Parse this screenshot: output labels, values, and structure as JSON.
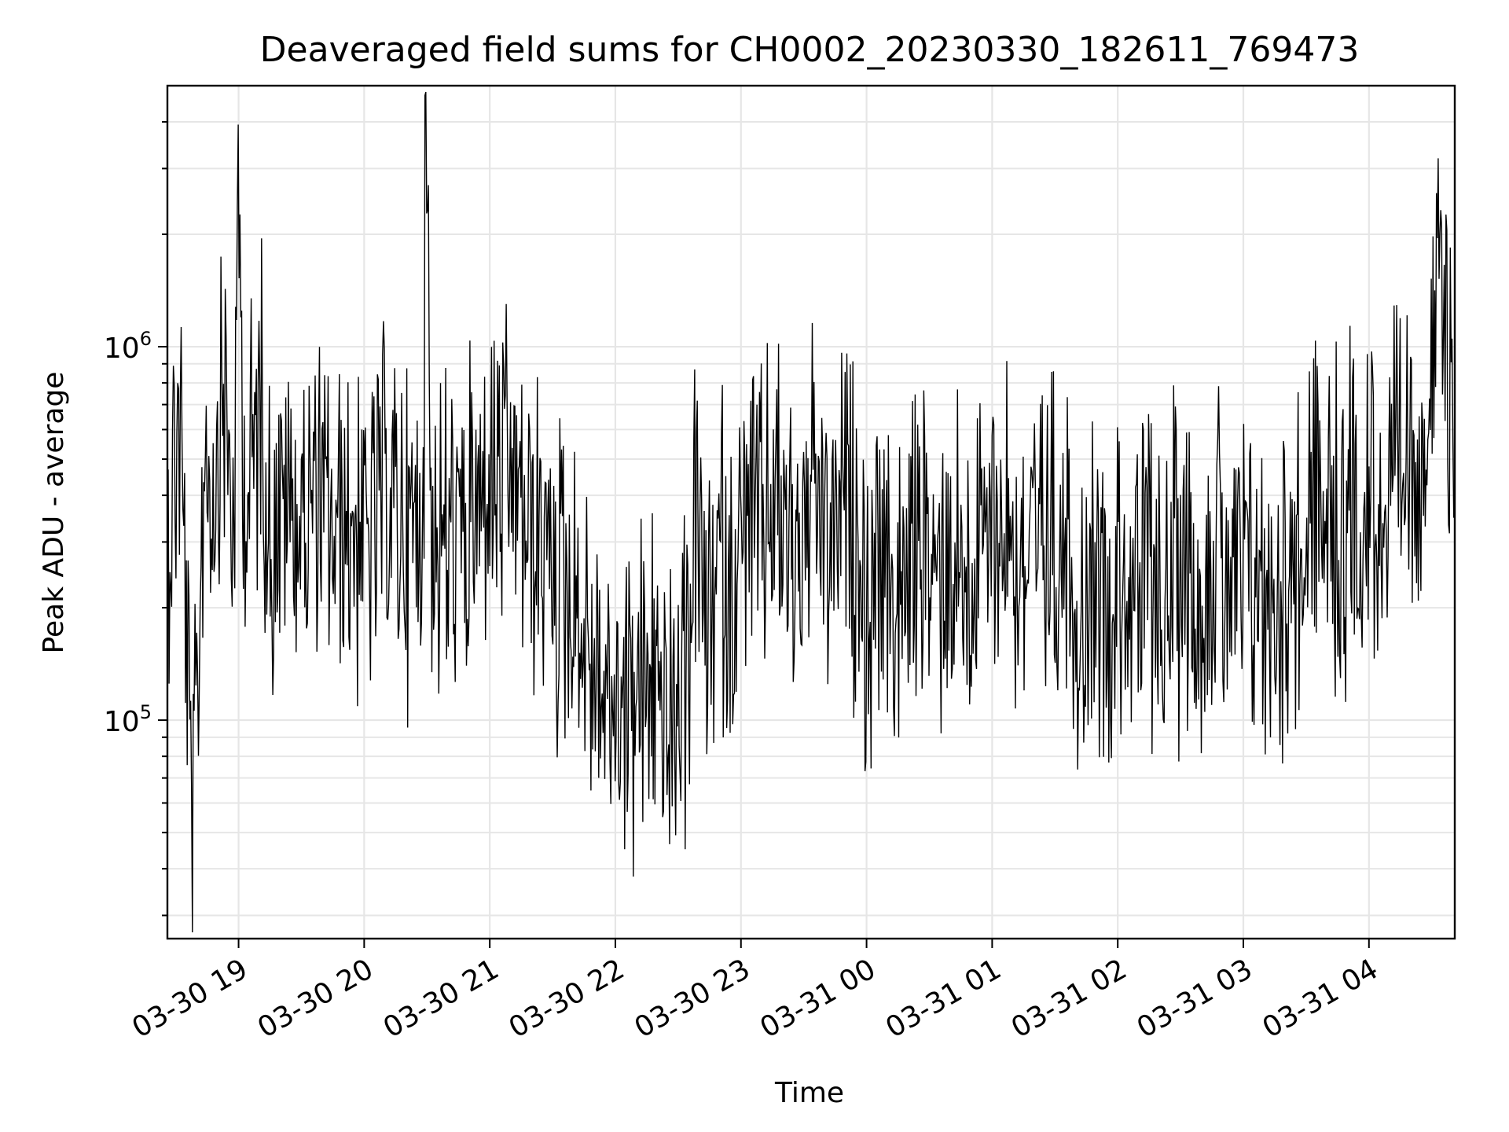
{
  "chart_data": {
    "type": "line",
    "title": "Deaveraged field sums for CH0002_20230330_182611_769473",
    "xlabel": "Time",
    "ylabel": "Peak ADU - average",
    "y_scale": "log",
    "ylim": [
      26000,
      5000000
    ],
    "xlim": [
      "2023-03-30 18:26",
      "2023-03-31 04:41"
    ],
    "grid": true,
    "legend": "none",
    "line_color": "#000000",
    "x_ticks": [
      {
        "value": "2023-03-30 19:00",
        "label": "03-30 19"
      },
      {
        "value": "2023-03-30 20:00",
        "label": "03-30 20"
      },
      {
        "value": "2023-03-30 21:00",
        "label": "03-30 21"
      },
      {
        "value": "2023-03-30 22:00",
        "label": "03-30 22"
      },
      {
        "value": "2023-03-30 23:00",
        "label": "03-30 23"
      },
      {
        "value": "2023-03-31 00:00",
        "label": "03-31 00"
      },
      {
        "value": "2023-03-31 01:00",
        "label": "03-31 01"
      },
      {
        "value": "2023-03-31 02:00",
        "label": "03-31 02"
      },
      {
        "value": "2023-03-31 03:00",
        "label": "03-31 03"
      },
      {
        "value": "2023-03-31 04:00",
        "label": "03-31 04"
      }
    ],
    "y_ticks": [
      {
        "value": 100000,
        "base": "10",
        "exp": "5"
      },
      {
        "value": 1000000,
        "base": "10",
        "exp": "6"
      }
    ],
    "series": [
      {
        "x": [
          "2023-03-30 18:26",
          "2023-03-30 18:32",
          "2023-03-30 18:38",
          "2023-03-30 18:44",
          "2023-03-30 18:48",
          "2023-03-30 18:52",
          "2023-03-30 18:58",
          "2023-03-30 19:00",
          "2023-03-30 19:02",
          "2023-03-30 19:04",
          "2023-03-30 19:10",
          "2023-03-30 19:16",
          "2023-03-30 19:22",
          "2023-03-30 19:30",
          "2023-03-30 19:38",
          "2023-03-30 19:46",
          "2023-03-30 19:54",
          "2023-03-30 20:02",
          "2023-03-30 20:10",
          "2023-03-30 20:16",
          "2023-03-30 20:22",
          "2023-03-30 20:28",
          "2023-03-30 20:30",
          "2023-03-30 20:32",
          "2023-03-30 20:38",
          "2023-03-30 20:46",
          "2023-03-30 20:54",
          "2023-03-30 21:00",
          "2023-03-30 21:08",
          "2023-03-30 21:16",
          "2023-03-30 21:24",
          "2023-03-30 21:32",
          "2023-03-30 21:40",
          "2023-03-30 21:48",
          "2023-03-30 21:54",
          "2023-03-30 22:00",
          "2023-03-30 22:06",
          "2023-03-30 22:12",
          "2023-03-30 22:18",
          "2023-03-30 22:24",
          "2023-03-30 22:30",
          "2023-03-30 22:34",
          "2023-03-30 22:38",
          "2023-03-30 22:44",
          "2023-03-30 22:50",
          "2023-03-30 22:56",
          "2023-03-30 23:02",
          "2023-03-30 23:08",
          "2023-03-30 23:14",
          "2023-03-30 23:20",
          "2023-03-30 23:28",
          "2023-03-30 23:36",
          "2023-03-30 23:44",
          "2023-03-30 23:52",
          "2023-03-31 00:00",
          "2023-03-31 00:08",
          "2023-03-31 00:16",
          "2023-03-31 00:24",
          "2023-03-31 00:32",
          "2023-03-31 00:40",
          "2023-03-31 00:48",
          "2023-03-31 00:56",
          "2023-03-31 01:04",
          "2023-03-31 01:12",
          "2023-03-31 01:20",
          "2023-03-31 01:28",
          "2023-03-31 01:36",
          "2023-03-31 01:42",
          "2023-03-31 01:48",
          "2023-03-31 01:54",
          "2023-03-31 02:00",
          "2023-03-31 02:08",
          "2023-03-31 02:16",
          "2023-03-31 02:24",
          "2023-03-31 02:32",
          "2023-03-31 02:40",
          "2023-03-31 02:48",
          "2023-03-31 02:56",
          "2023-03-31 03:04",
          "2023-03-31 03:12",
          "2023-03-31 03:20",
          "2023-03-31 03:28",
          "2023-03-31 03:36",
          "2023-03-31 03:44",
          "2023-03-31 03:52",
          "2023-03-31 04:00",
          "2023-03-31 04:08",
          "2023-03-31 04:14",
          "2023-03-31 04:20",
          "2023-03-31 04:26",
          "2023-03-31 04:30",
          "2023-03-31 04:34",
          "2023-03-31 04:38",
          "2023-03-31 04:41"
        ],
        "values": [
          300000,
          700000,
          45000,
          600000,
          400000,
          900000,
          300000,
          3000000,
          500000,
          400000,
          700000,
          300000,
          400000,
          350000,
          400000,
          300000,
          350000,
          300000,
          400000,
          350000,
          300000,
          400000,
          4800000,
          350000,
          300000,
          300000,
          350000,
          400000,
          450000,
          350000,
          300000,
          250000,
          200000,
          150000,
          120000,
          110000,
          110000,
          120000,
          130000,
          100000,
          90000,
          120000,
          400000,
          150000,
          300000,
          200000,
          350000,
          300000,
          400000,
          350000,
          300000,
          350000,
          300000,
          350000,
          200000,
          250000,
          200000,
          300000,
          250000,
          300000,
          250000,
          300000,
          350000,
          300000,
          250000,
          300000,
          300000,
          200000,
          250000,
          200000,
          250000,
          200000,
          250000,
          200000,
          300000,
          200000,
          300000,
          200000,
          250000,
          200000,
          250000,
          300000,
          350000,
          300000,
          350000,
          400000,
          350000,
          400000,
          500000,
          600000,
          800000,
          1500000,
          700000,
          900000
        ]
      }
    ]
  }
}
